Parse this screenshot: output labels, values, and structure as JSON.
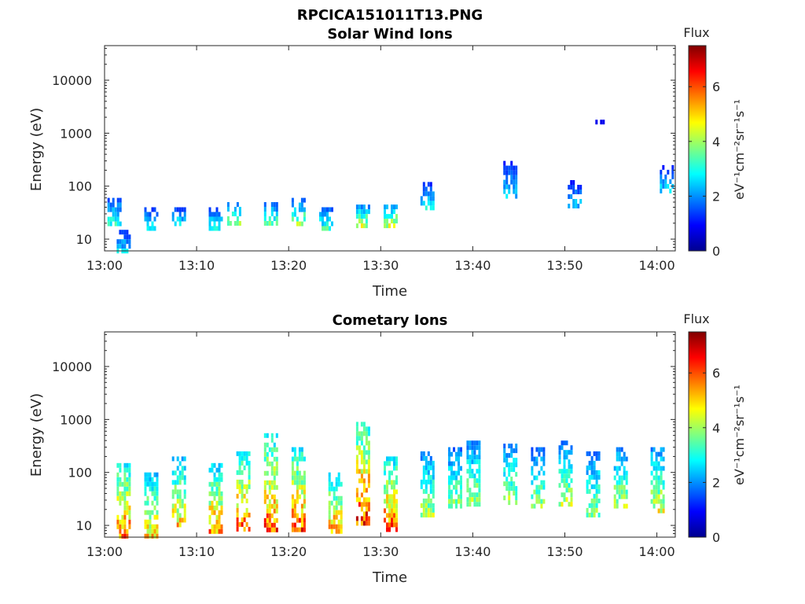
{
  "figure_title": "RPCICA151011T13.PNG",
  "colorbar": {
    "label": "Flux",
    "unit": "eV⁻¹cm⁻²sr⁻¹s⁻¹",
    "range": [
      0,
      7.5
    ],
    "ticks": [
      "0",
      "2",
      "4",
      "6"
    ],
    "colormap": "jet"
  },
  "chart_data": [
    {
      "type": "heatmap",
      "title": "Solar Wind Ions",
      "xlabel": "Time",
      "ylabel": "Energy (eV)",
      "xlim": [
        "13:00",
        "14:02"
      ],
      "ylim": [
        6,
        45000
      ],
      "yscale": "log",
      "xticks": [
        "13:00",
        "13:10",
        "13:20",
        "13:30",
        "13:40",
        "13:50",
        "14:00"
      ],
      "yticks": [
        "10",
        "100",
        "1000",
        "10000"
      ],
      "patches": [
        {
          "t": "13:01",
          "e": [
            18,
            60
          ],
          "peak": 3.6
        },
        {
          "t": "13:02",
          "e": [
            6,
            15
          ],
          "peak": 3.0
        },
        {
          "t": "13:05",
          "e": [
            15,
            40
          ],
          "peak": 3.2
        },
        {
          "t": "13:08",
          "e": [
            18,
            40
          ],
          "peak": 3.4
        },
        {
          "t": "13:12",
          "e": [
            15,
            40
          ],
          "peak": 3.4
        },
        {
          "t": "13:14",
          "e": [
            20,
            50
          ],
          "peak": 4.2
        },
        {
          "t": "13:18",
          "e": [
            18,
            50
          ],
          "peak": 4.0
        },
        {
          "t": "13:21",
          "e": [
            18,
            60
          ],
          "peak": 4.5
        },
        {
          "t": "13:24",
          "e": [
            15,
            40
          ],
          "peak": 3.8
        },
        {
          "t": "13:28",
          "e": [
            18,
            45
          ],
          "peak": 5.0
        },
        {
          "t": "13:31",
          "e": [
            18,
            45
          ],
          "peak": 5.0
        },
        {
          "t": "13:35",
          "e": [
            40,
            120
          ],
          "peak": 3.0
        },
        {
          "t": "13:44",
          "e": [
            60,
            300
          ],
          "peak": 2.8
        },
        {
          "t": "13:51",
          "e": [
            40,
            130
          ],
          "peak": 2.8
        },
        {
          "t": "13:54",
          "e": [
            1700,
            1800
          ],
          "peak": 1.8
        },
        {
          "t": "14:01",
          "e": [
            80,
            250
          ],
          "peak": 3.0
        }
      ]
    },
    {
      "type": "heatmap",
      "title": "Cometary Ions",
      "xlabel": "Time",
      "ylabel": "Energy (eV)",
      "xlim": [
        "13:00",
        "14:02"
      ],
      "ylim": [
        6,
        45000
      ],
      "yscale": "log",
      "xticks": [
        "13:00",
        "13:10",
        "13:20",
        "13:30",
        "13:40",
        "13:50",
        "14:00"
      ],
      "yticks": [
        "10",
        "100",
        "1000",
        "10000"
      ],
      "patches": [
        {
          "t": "13:02",
          "e": [
            6,
            150
          ],
          "peak": 6.5
        },
        {
          "t": "13:05",
          "e": [
            6,
            100
          ],
          "peak": 5.5
        },
        {
          "t": "13:08",
          "e": [
            10,
            200
          ],
          "peak": 5.5
        },
        {
          "t": "13:12",
          "e": [
            8,
            150
          ],
          "peak": 6.0
        },
        {
          "t": "13:15",
          "e": [
            8,
            250
          ],
          "peak": 6.5
        },
        {
          "t": "13:18",
          "e": [
            8,
            550
          ],
          "peak": 6.5
        },
        {
          "t": "13:21",
          "e": [
            8,
            300
          ],
          "peak": 6.5
        },
        {
          "t": "13:25",
          "e": [
            8,
            100
          ],
          "peak": 6.0
        },
        {
          "t": "13:28",
          "e": [
            10,
            900
          ],
          "peak": 7.0
        },
        {
          "t": "13:31",
          "e": [
            8,
            200
          ],
          "peak": 6.5
        },
        {
          "t": "13:35",
          "e": [
            15,
            250
          ],
          "peak": 4.5
        },
        {
          "t": "13:38",
          "e": [
            25,
            300
          ],
          "peak": 4.2
        },
        {
          "t": "13:40",
          "e": [
            25,
            400
          ],
          "peak": 4.5
        },
        {
          "t": "13:44",
          "e": [
            25,
            350
          ],
          "peak": 4.5
        },
        {
          "t": "13:47",
          "e": [
            25,
            300
          ],
          "peak": 4.2
        },
        {
          "t": "13:50",
          "e": [
            25,
            400
          ],
          "peak": 4.5
        },
        {
          "t": "13:53",
          "e": [
            15,
            250
          ],
          "peak": 4.2
        },
        {
          "t": "13:56",
          "e": [
            25,
            300
          ],
          "peak": 4.5
        },
        {
          "t": "14:00",
          "e": [
            20,
            300
          ],
          "peak": 4.8
        }
      ]
    }
  ]
}
